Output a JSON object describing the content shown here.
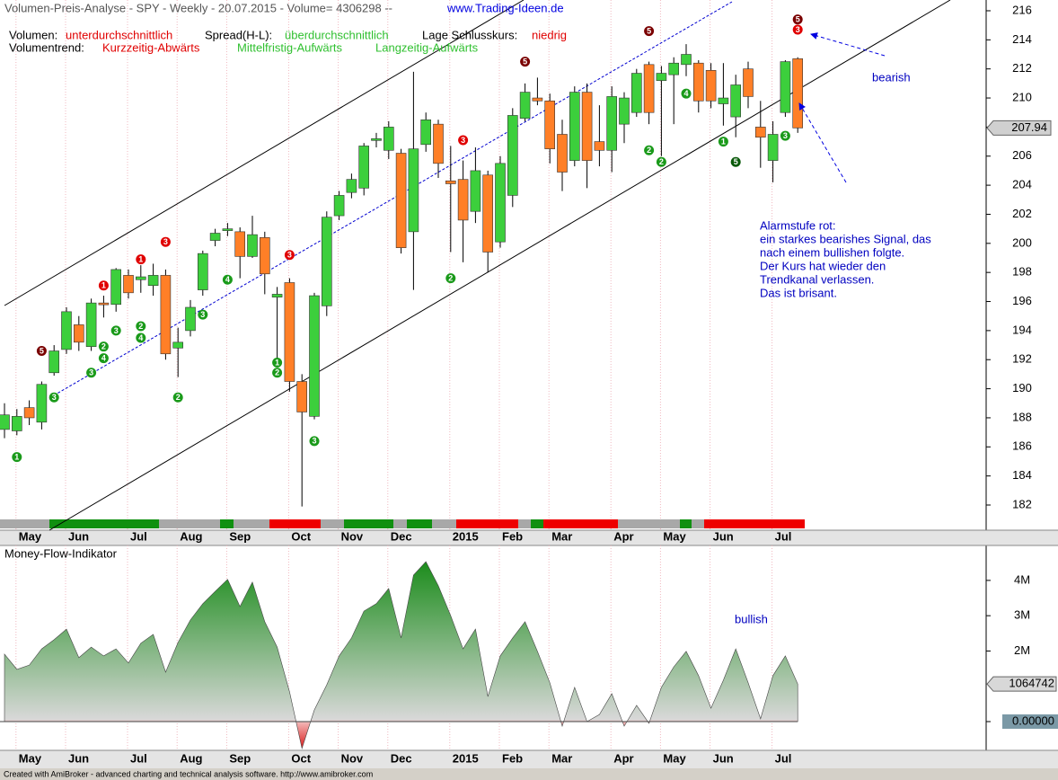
{
  "header": {
    "title": "Volumen-Preis-Analyse - SPY - Weekly  - 20.07.2015 - Volume= 4306298 --",
    "website": "www.Trading-Ideen.de",
    "volume_label": "Volumen:",
    "volume_value": "unterdurchschnittlich",
    "spread_label": "Spread(H-L):",
    "spread_value": "überdurchschnittlich",
    "close_label": "Lage Schlusskurs:",
    "close_value": "niedrig",
    "trend_label": "Volumentrend:",
    "trend_short": "Kurzzeitig-Abwärts",
    "trend_mid": "Mittelfristig-Aufwärts",
    "trend_long": "Langzeitig-Aufwärts"
  },
  "footer": "Created with AmiBroker - advanced charting and technical analysis software. http://www.amibroker.com",
  "chart_data": [
    {
      "type": "candlestick",
      "categories": [
        null,
        "May",
        null,
        null,
        null,
        "Jun",
        null,
        null,
        null,
        null,
        "Jul",
        null,
        null,
        null,
        "Aug",
        null,
        null,
        null,
        "Sep",
        null,
        null,
        null,
        null,
        "Oct",
        null,
        null,
        null,
        "Nov",
        null,
        null,
        null,
        "Dec",
        null,
        null,
        null,
        null,
        "2015",
        null,
        null,
        null,
        "Feb",
        null,
        null,
        null,
        "Mar",
        null,
        null,
        null,
        null,
        "Apr",
        null,
        null,
        null,
        "May",
        null,
        null,
        null,
        "Jun",
        null,
        null,
        null,
        null,
        "Jul",
        null,
        null
      ],
      "open": [
        187.2,
        187.1,
        188.7,
        187.7,
        191.1,
        192.7,
        194.4,
        192.9,
        195.9,
        195.8,
        197.8,
        197.5,
        197.1,
        197.8,
        192.8,
        194.0,
        196.8,
        200.2,
        200.9,
        200.8,
        199.1,
        200.4,
        196.3,
        197.3,
        190.5,
        188.1,
        195.7,
        201.9,
        203.5,
        203.8,
        207.1,
        206.4,
        206.2,
        200.8,
        206.8,
        208.2,
        204.3,
        204.4,
        202.2,
        204.7,
        200.1,
        203.3,
        208.6,
        210.0,
        209.8,
        207.5,
        205.7,
        210.4,
        207.0,
        206.4,
        208.2,
        209.0,
        212.3,
        211.2,
        211.6,
        212.3,
        212.4,
        211.9,
        209.6,
        208.7,
        212.0,
        208.0,
        205.7,
        209.0,
        212.7
      ],
      "high": [
        189.0,
        188.6,
        189.2,
        190.5,
        193.0,
        195.6,
        195.0,
        196.2,
        196.4,
        198.3,
        198.2,
        198.5,
        198.6,
        198.2,
        194.2,
        196.1,
        199.5,
        201.0,
        201.4,
        201.1,
        201.9,
        200.8,
        197.0,
        197.6,
        191.0,
        196.6,
        202.2,
        203.6,
        204.8,
        206.9,
        207.6,
        208.4,
        206.5,
        211.8,
        209.0,
        208.5,
        206.7,
        205.7,
        206.6,
        205.0,
        206.0,
        209.3,
        211.0,
        211.4,
        210.3,
        208.5,
        210.8,
        211.0,
        209.5,
        210.8,
        210.4,
        212.0,
        212.5,
        212.2,
        212.8,
        213.7,
        212.6,
        212.4,
        212.4,
        211.6,
        212.5,
        209.8,
        208.4,
        212.6,
        212.8
      ],
      "low": [
        186.6,
        186.8,
        187.5,
        187.2,
        190.9,
        192.4,
        192.6,
        192.6,
        194.9,
        195.3,
        196.2,
        196.6,
        196.4,
        192.0,
        190.8,
        193.6,
        196.4,
        199.8,
        200.5,
        197.6,
        199.0,
        196.5,
        192.0,
        189.8,
        181.9,
        187.9,
        195.0,
        201.6,
        203.1,
        203.3,
        206.6,
        205.8,
        199.3,
        196.8,
        206.3,
        204.5,
        199.4,
        198.7,
        201.4,
        198.0,
        199.7,
        202.5,
        208.4,
        209.5,
        205.5,
        203.6,
        205.3,
        203.8,
        205.3,
        204.9,
        206.9,
        208.7,
        208.2,
        206.0,
        208.2,
        211.5,
        209.0,
        209.3,
        208.1,
        207.3,
        209.3,
        205.2,
        204.2,
        208.7,
        207.6
      ],
      "close": [
        188.2,
        188.1,
        188.0,
        190.3,
        192.6,
        195.3,
        193.2,
        195.9,
        195.8,
        198.2,
        196.6,
        197.7,
        197.8,
        192.4,
        193.2,
        195.6,
        199.3,
        200.7,
        201.0,
        199.1,
        200.6,
        197.9,
        196.5,
        190.5,
        188.4,
        196.4,
        201.8,
        203.3,
        204.4,
        206.7,
        207.2,
        208.0,
        199.7,
        206.5,
        208.5,
        205.5,
        204.1,
        201.6,
        205.0,
        199.4,
        205.5,
        208.8,
        210.4,
        209.8,
        206.5,
        204.9,
        210.4,
        205.7,
        206.4,
        210.1,
        210.0,
        211.7,
        209.0,
        211.7,
        212.4,
        213.0,
        209.8,
        209.8,
        210.0,
        210.9,
        210.1,
        207.3,
        207.5,
        212.5,
        207.94
      ],
      "up_color": "#3ccf3c",
      "down_color": "#ff7f27",
      "ylim": [
        180.27,
        216.74
      ],
      "yticks": [
        182,
        184,
        186,
        188,
        190,
        192,
        194,
        196,
        198,
        200,
        202,
        204,
        206,
        208,
        210,
        212,
        214,
        216
      ],
      "signals": [
        {
          "week": 1,
          "price": 185.3,
          "label": "1",
          "color": "#1a9a1a"
        },
        {
          "week": 3,
          "price": 192.6,
          "label": "5",
          "color": "#7a0000"
        },
        {
          "week": 4,
          "price": 189.4,
          "label": "3",
          "color": "#1a9a1a"
        },
        {
          "week": 7,
          "price": 191.1,
          "label": "3",
          "color": "#1a9a1a"
        },
        {
          "week": 8,
          "price": 192.1,
          "label": "4",
          "color": "#1a9a1a"
        },
        {
          "week": 8,
          "price": 192.9,
          "label": "2",
          "color": "#1a9a1a"
        },
        {
          "week": 8,
          "price": 197.1,
          "label": "1",
          "color": "#e00000"
        },
        {
          "week": 9,
          "price": 194.0,
          "label": "3",
          "color": "#1a9a1a"
        },
        {
          "week": 11,
          "price": 194.3,
          "label": "2",
          "color": "#1a9a1a"
        },
        {
          "week": 11,
          "price": 193.5,
          "label": "4",
          "color": "#1a9a1a"
        },
        {
          "week": 11,
          "price": 198.9,
          "label": "1",
          "color": "#e00000"
        },
        {
          "week": 13,
          "price": 200.1,
          "label": "3",
          "color": "#e00000"
        },
        {
          "week": 14,
          "price": 189.4,
          "label": "2",
          "color": "#1a9a1a"
        },
        {
          "week": 16,
          "price": 195.1,
          "label": "3",
          "color": "#1a9a1a"
        },
        {
          "week": 18,
          "price": 197.5,
          "label": "4",
          "color": "#1a9a1a"
        },
        {
          "week": 22,
          "price": 191.8,
          "label": "1",
          "color": "#1a9a1a"
        },
        {
          "week": 22,
          "price": 191.1,
          "label": "2",
          "color": "#1a9a1a"
        },
        {
          "week": 23,
          "price": 199.2,
          "label": "3",
          "color": "#e00000"
        },
        {
          "week": 25,
          "price": 186.4,
          "label": "3",
          "color": "#1a9a1a"
        },
        {
          "week": 36,
          "price": 197.6,
          "label": "2",
          "color": "#1a9a1a"
        },
        {
          "week": 37,
          "price": 207.1,
          "label": "3",
          "color": "#e00000"
        },
        {
          "week": 42,
          "price": 212.5,
          "label": "5",
          "color": "#7a0000"
        },
        {
          "week": 52,
          "price": 206.4,
          "label": "2",
          "color": "#1a9a1a"
        },
        {
          "week": 52,
          "price": 214.6,
          "label": "5",
          "color": "#7a0000"
        },
        {
          "week": 53,
          "price": 205.6,
          "label": "2",
          "color": "#1a9a1a"
        },
        {
          "week": 55,
          "price": 210.3,
          "label": "4",
          "color": "#1a9a1a"
        },
        {
          "week": 58,
          "price": 207.0,
          "label": "1",
          "color": "#1a9a1a"
        },
        {
          "week": 59,
          "price": 205.6,
          "label": "5",
          "color": "#0a5a0a"
        },
        {
          "week": 63,
          "price": 207.4,
          "label": "3",
          "color": "#1a9a1a"
        },
        {
          "week": 64,
          "price": 215.4,
          "label": "5",
          "color": "#7a0000"
        },
        {
          "week": 64,
          "price": 214.7,
          "label": "3",
          "color": "#e00000"
        }
      ],
      "annotation_bearish": "bearish",
      "alarm": [
        "Alarmstufe rot:",
        "ein starkes bearishes Signal, das",
        "nach einem bullishen folgte.",
        "Der Kurs hat wieder den",
        "Trendkanal verlassen.",
        "Das ist brisant."
      ]
    },
    {
      "type": "area",
      "title": "Money-Flow-Indikator",
      "categories": [
        null,
        "May",
        null,
        null,
        null,
        "Jun",
        null,
        null,
        null,
        null,
        "Jul",
        null,
        null,
        null,
        "Aug",
        null,
        null,
        null,
        "Sep",
        null,
        null,
        null,
        null,
        "Oct",
        null,
        null,
        null,
        "Nov",
        null,
        null,
        null,
        "Dec",
        null,
        null,
        null,
        null,
        "2015",
        null,
        null,
        null,
        "Feb",
        null,
        null,
        null,
        "Mar",
        null,
        null,
        null,
        null,
        "Apr",
        null,
        null,
        null,
        "May",
        null,
        null,
        null,
        "Jun",
        null,
        null,
        null,
        null,
        "Jul",
        null,
        null
      ],
      "values": [
        1910000,
        1480000,
        1600000,
        2060000,
        2320000,
        2620000,
        1810000,
        2110000,
        1860000,
        2060000,
        1660000,
        2220000,
        2470000,
        1400000,
        2240000,
        2880000,
        3340000,
        3690000,
        4030000,
        3260000,
        3950000,
        2830000,
        2110000,
        840000,
        -760000,
        330000,
        1040000,
        1860000,
        2370000,
        3130000,
        3340000,
        3770000,
        2370000,
        4150000,
        4530000,
        3850000,
        3000000,
        2060000,
        2620000,
        710000,
        1860000,
        2370000,
        2830000,
        1990000,
        1100000,
        -130000,
        970000,
        0,
        200000,
        790000,
        -130000,
        460000,
        -50000,
        970000,
        1550000,
        1990000,
        1300000,
        380000,
        1170000,
        2060000,
        1100000,
        80000,
        1300000,
        1860000,
        1064742
      ],
      "ylim": [
        -815000,
        4990000
      ],
      "yticks": [
        {
          "value": 0,
          "label": "0.00000"
        },
        {
          "value": 2000000,
          "label": "2M"
        },
        {
          "value": 3000000,
          "label": "3M"
        },
        {
          "value": 4000000,
          "label": "4M"
        }
      ],
      "annotation": "bullish"
    }
  ]
}
